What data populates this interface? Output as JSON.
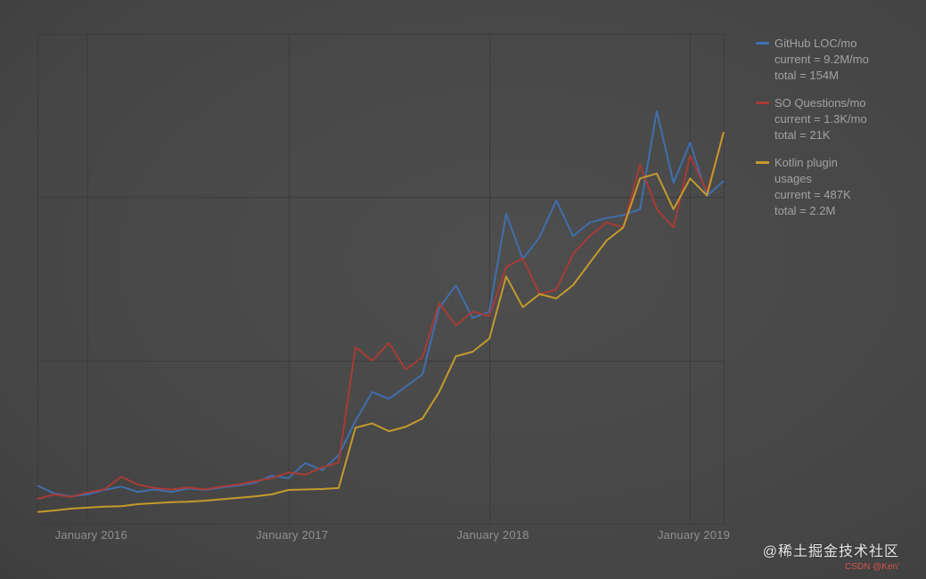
{
  "page": {
    "background": "#4a4a4a",
    "grid_color": "#3c3c3c"
  },
  "legend": {
    "items": [
      {
        "name": "github-loc",
        "color": "#3f6fae",
        "lines": [
          "GitHub LOC/mo",
          "current = 9.2M/mo",
          "total = 154M"
        ]
      },
      {
        "name": "so-questions",
        "color": "#a83b34",
        "lines": [
          "SO Questions/mo",
          "current = 1.3K/mo",
          "total = 21K"
        ]
      },
      {
        "name": "kotlin-plugin",
        "color": "#c49a2b",
        "lines": [
          "Kotlin plugin",
          "usages",
          "current = 487K",
          "total = 2.2M"
        ]
      }
    ]
  },
  "chart_data": {
    "type": "line",
    "title": "",
    "xlabel": "",
    "ylabel": "",
    "grid": true,
    "legend_position": "right",
    "ylim": [
      0,
      100
    ],
    "y_unit": "relative height, 0-100 (no y-axis tick labels shown in chart)",
    "x": [
      "Oct 2015",
      "Nov 2015",
      "Dec 2015",
      "Jan 2016",
      "Feb 2016",
      "Mar 2016",
      "Apr 2016",
      "May 2016",
      "Jun 2016",
      "Jul 2016",
      "Aug 2016",
      "Sep 2016",
      "Oct 2016",
      "Nov 2016",
      "Dec 2016",
      "Jan 2017",
      "Feb 2017",
      "Mar 2017",
      "Apr 2017",
      "May 2017",
      "Jun 2017",
      "Jul 2017",
      "Aug 2017",
      "Sep 2017",
      "Oct 2017",
      "Nov 2017",
      "Dec 2017",
      "Jan 2018",
      "Feb 2018",
      "Mar 2018",
      "Apr 2018",
      "May 2018",
      "Jun 2018",
      "Jul 2018",
      "Aug 2018",
      "Sep 2018",
      "Oct 2018",
      "Nov 2018",
      "Dec 2018",
      "Jan 2019",
      "Feb 2019",
      "Mar 2019"
    ],
    "x_ticks": [
      "January 2016",
      "January 2017",
      "January 2018",
      "January 2019"
    ],
    "x_tick_indices": [
      3,
      15,
      27,
      39
    ],
    "series": [
      {
        "name": "GitHub LOC/mo",
        "color": "#3f6fae",
        "values": [
          7.8,
          6.2,
          5.6,
          6.0,
          6.9,
          7.6,
          6.5,
          7.0,
          6.5,
          7.2,
          6.9,
          7.4,
          7.8,
          8.4,
          9.8,
          9.3,
          12.4,
          10.9,
          14.0,
          21.0,
          26.9,
          25.5,
          28.0,
          30.5,
          44.0,
          48.7,
          42.0,
          43.3,
          63.3,
          54.0,
          58.5,
          66.0,
          58.7,
          61.5,
          62.4,
          63.0,
          64.2,
          84.2,
          69.6,
          77.8,
          66.9,
          70.0
        ]
      },
      {
        "name": "SO Questions/mo",
        "color": "#a83b34",
        "values": [
          5.1,
          6.0,
          5.5,
          6.4,
          7.0,
          9.6,
          8.0,
          7.3,
          7.0,
          7.4,
          7.0,
          7.6,
          8.0,
          8.7,
          9.3,
          10.5,
          10.0,
          11.5,
          12.5,
          36.0,
          33.3,
          36.9,
          31.5,
          34.0,
          45.0,
          40.5,
          43.3,
          42.4,
          52.4,
          54.2,
          46.9,
          47.8,
          55.1,
          58.7,
          61.5,
          60.5,
          73.3,
          64.2,
          60.5,
          75.1,
          67.8,
          79.6
        ]
      },
      {
        "name": "Kotlin plugin usages",
        "color": "#c49a2b",
        "values": [
          2.4,
          2.7,
          3.1,
          3.3,
          3.5,
          3.6,
          4.0,
          4.2,
          4.4,
          4.5,
          4.7,
          5.0,
          5.3,
          5.6,
          6.0,
          6.9,
          7.0,
          7.1,
          7.3,
          19.6,
          20.5,
          18.9,
          19.8,
          21.5,
          26.9,
          34.2,
          35.1,
          37.8,
          50.5,
          44.2,
          46.9,
          46.0,
          48.7,
          53.3,
          57.8,
          60.5,
          70.5,
          71.5,
          64.2,
          70.5,
          67.0,
          80.0
        ]
      }
    ]
  },
  "watermark": {
    "line1": "@稀土掘金技术社区",
    "line2": "CSDN @Ken'"
  }
}
